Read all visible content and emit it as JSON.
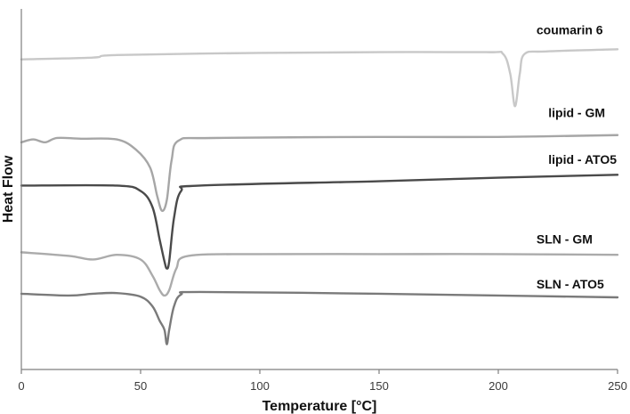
{
  "chart_data": {
    "type": "line",
    "xlabel": "Temperature  [°C]",
    "ylabel": "Heat Flow",
    "xlim": [
      0,
      250
    ],
    "ylim": [
      0,
      10
    ],
    "xticks": [
      0,
      50,
      100,
      150,
      200,
      250
    ],
    "yticks_shown": false,
    "grid": false,
    "series": [
      {
        "name": "coumarin 6",
        "color": "#c8c8c8",
        "label_x": 216,
        "label_y": 9.3,
        "points": [
          [
            0,
            8.6
          ],
          [
            30,
            8.65
          ],
          [
            40,
            8.72
          ],
          [
            100,
            8.78
          ],
          [
            150,
            8.8
          ],
          [
            195,
            8.8
          ],
          [
            202,
            8.75
          ],
          [
            205,
            8.2
          ],
          [
            207,
            7.3
          ],
          [
            209,
            8.2
          ],
          [
            211,
            8.75
          ],
          [
            220,
            8.82
          ],
          [
            250,
            8.88
          ]
        ]
      },
      {
        "name": "lipid - GM",
        "color": "#a6a6a6",
        "label_x": 221,
        "label_y": 7.0,
        "points": [
          [
            0,
            6.3
          ],
          [
            5,
            6.38
          ],
          [
            10,
            6.3
          ],
          [
            15,
            6.42
          ],
          [
            25,
            6.4
          ],
          [
            40,
            6.38
          ],
          [
            48,
            6.1
          ],
          [
            54,
            5.6
          ],
          [
            57,
            4.8
          ],
          [
            59,
            4.4
          ],
          [
            61,
            4.7
          ],
          [
            63,
            5.8
          ],
          [
            66,
            6.35
          ],
          [
            80,
            6.42
          ],
          [
            150,
            6.45
          ],
          [
            200,
            6.45
          ],
          [
            250,
            6.5
          ]
        ]
      },
      {
        "name": "lipid - ATO5",
        "color": "#4a4a4a",
        "label_x": 221,
        "label_y": 5.7,
        "points": [
          [
            0,
            5.1
          ],
          [
            40,
            5.1
          ],
          [
            50,
            4.95
          ],
          [
            55,
            4.5
          ],
          [
            58,
            3.6
          ],
          [
            60,
            3.0
          ],
          [
            61,
            2.8
          ],
          [
            62,
            3.0
          ],
          [
            64,
            4.2
          ],
          [
            67,
            4.95
          ],
          [
            75,
            5.1
          ],
          [
            150,
            5.22
          ],
          [
            200,
            5.32
          ],
          [
            250,
            5.4
          ]
        ]
      },
      {
        "name": "SLN - GM",
        "color": "#ababab",
        "label_x": 216,
        "label_y": 3.5,
        "points": [
          [
            0,
            3.25
          ],
          [
            20,
            3.15
          ],
          [
            30,
            3.05
          ],
          [
            40,
            3.18
          ],
          [
            50,
            3.05
          ],
          [
            55,
            2.6
          ],
          [
            58,
            2.2
          ],
          [
            60,
            2.05
          ],
          [
            62,
            2.2
          ],
          [
            65,
            2.8
          ],
          [
            70,
            3.15
          ],
          [
            100,
            3.2
          ],
          [
            150,
            3.2
          ],
          [
            200,
            3.2
          ],
          [
            250,
            3.18
          ]
        ]
      },
      {
        "name": "SLN - ATO5",
        "color": "#7a7a7a",
        "label_x": 216,
        "label_y": 2.25,
        "points": [
          [
            0,
            2.1
          ],
          [
            20,
            2.05
          ],
          [
            30,
            2.1
          ],
          [
            40,
            2.12
          ],
          [
            50,
            2.02
          ],
          [
            55,
            1.75
          ],
          [
            58,
            1.35
          ],
          [
            60,
            1.1
          ],
          [
            61,
            0.7
          ],
          [
            62,
            1.1
          ],
          [
            64,
            1.75
          ],
          [
            67,
            2.08
          ],
          [
            75,
            2.15
          ],
          [
            150,
            2.1
          ],
          [
            200,
            2.05
          ],
          [
            250,
            2.0
          ]
        ]
      }
    ]
  }
}
